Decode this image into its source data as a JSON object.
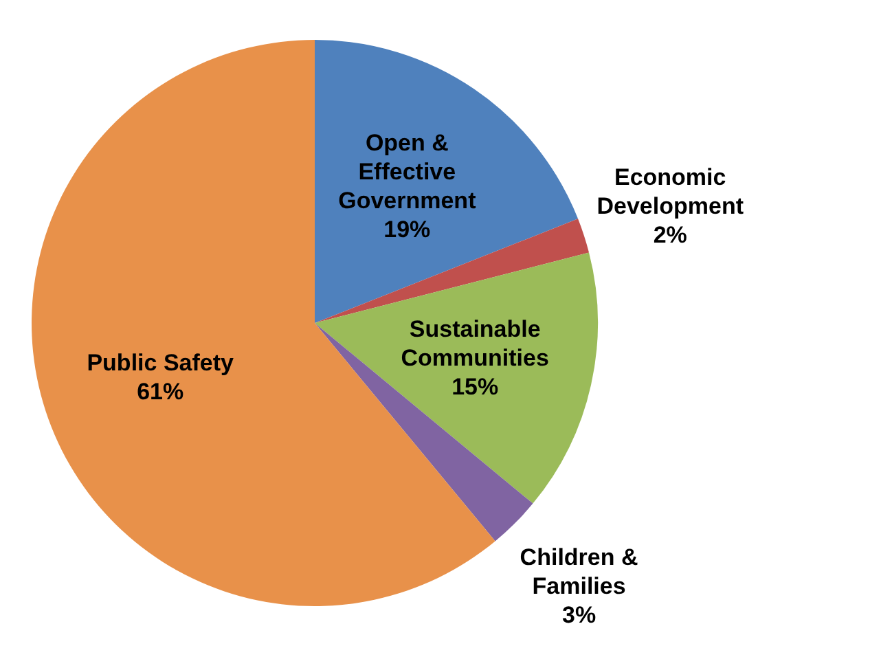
{
  "chart_data": {
    "type": "pie",
    "categories": [
      "Open & Effective Government",
      "Economic Development",
      "Sustainable Communities",
      "Children & Families",
      "Public Safety"
    ],
    "values": [
      19,
      2,
      15,
      3,
      61
    ],
    "value_labels": [
      "19%",
      "2%",
      "15%",
      "3%",
      "61%"
    ],
    "colors": [
      "#4f81bd",
      "#c0504d",
      "#9bbb59",
      "#8064a2",
      "#e8914a"
    ],
    "legend": false
  }
}
